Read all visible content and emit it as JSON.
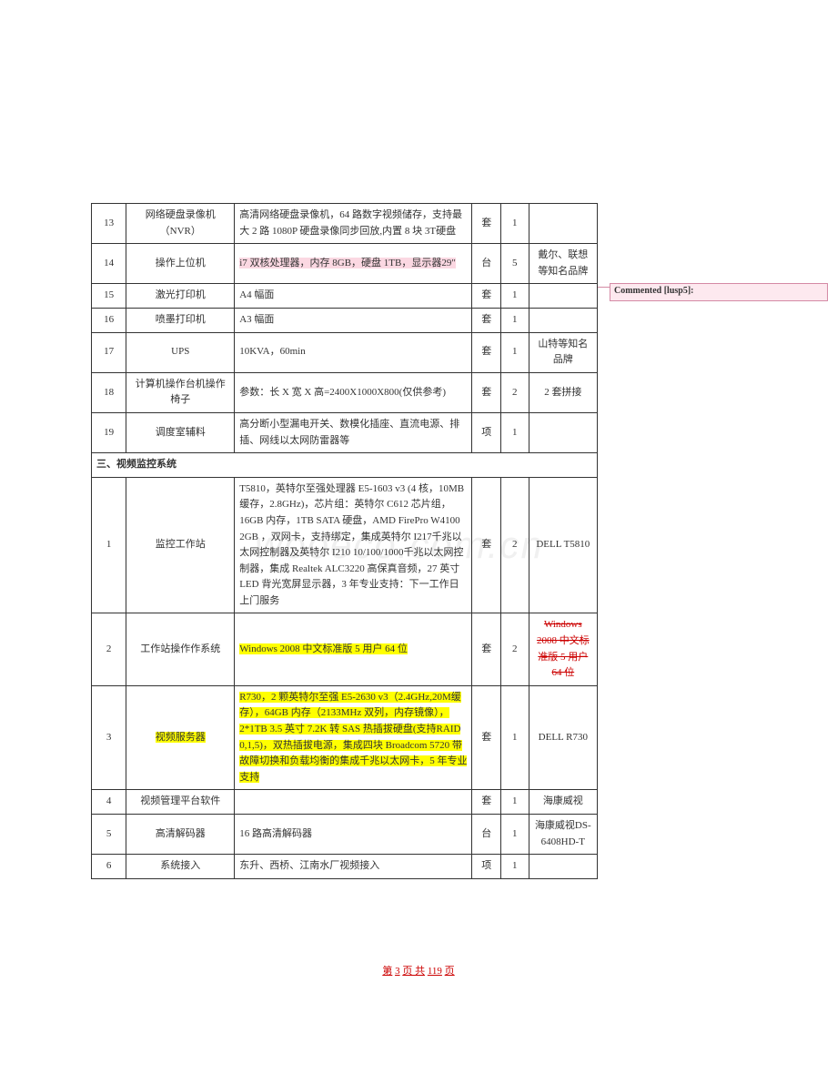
{
  "watermark": "wooeco.com.cn",
  "comment_label": "Commented [lusp5]:",
  "footer": {
    "prefix": "第",
    "cur": "3",
    "mid": "页 共",
    "total": "119",
    "suffix": "页"
  },
  "colors": {
    "pink": "#fbd8e2",
    "yellow": "#ffff00",
    "strike": "#c00",
    "comment_bg": "#fde9ef",
    "comment_border": "#d48aa5"
  },
  "rows1": [
    {
      "n": "13",
      "name": "网络硬盘录像机（NVR）",
      "spec": "高清网络硬盘录像机，64 路数字视频储存，支持最大 2 路 1080P 硬盘录像同步回放,内置 8 块 3T硬盘",
      "unit": "套",
      "qty": "1",
      "note": ""
    },
    {
      "n": "14",
      "name": "操作上位机",
      "spec": "i7 双核处理器，内存 8GB，硬盘 1TB，显示器29\"",
      "unit": "台",
      "qty": "5",
      "note": "戴尔、联想等知名品牌",
      "spec_hl": "pink"
    },
    {
      "n": "15",
      "name": "激光打印机",
      "spec": "A4 幅面",
      "unit": "套",
      "qty": "1",
      "note": ""
    },
    {
      "n": "16",
      "name": "喷墨打印机",
      "spec": "A3 幅面",
      "unit": "套",
      "qty": "1",
      "note": ""
    },
    {
      "n": "17",
      "name": "UPS",
      "spec": "10KVA，60min",
      "unit": "套",
      "qty": "1",
      "note": "山特等知名品牌"
    },
    {
      "n": "18",
      "name": "计算机操作台机操作椅子",
      "spec": "参数：长 X 宽 X 高=2400X1000X800(仅供参考)",
      "unit": "套",
      "qty": "2",
      "note": "2 套拼接"
    },
    {
      "n": "19",
      "name": "调度室辅料",
      "spec": "高分断小型漏电开关、数模化插座、直流电源、排插、网线以太网防雷器等",
      "unit": "项",
      "qty": "1",
      "note": ""
    }
  ],
  "section3": "三、视频监控系统",
  "rows2": [
    {
      "n": "1",
      "name": "监控工作站",
      "spec": "T5810，英特尔至强处理器 E5-1603 v3 (4 核，10MB 缓存，2.8GHz)，芯片组：英特尔 C612 芯片组，16GB 内存，1TB SATA 硬盘，AMD FirePro W4100 2GB ，双网卡，支持绑定，集成英特尔 I217千兆以太网控制器及英特尔 I210 10/100/1000千兆以太网控制器，集成 Realtek ALC3220 高保真音频，27 英寸 LED 背光宽屏显示器，3 年专业支持：下一工作日上门服务",
      "unit": "套",
      "qty": "2",
      "note": "DELL T5810"
    },
    {
      "n": "2",
      "name": "工作站操作作系统",
      "spec": "Windows 2008 中文标准版 5 用户 64 位",
      "unit": "套",
      "qty": "2",
      "note": "Windows 2008 中文标准版 5 用户64 位",
      "spec_hl": "yellow",
      "note_strike": true
    },
    {
      "n": "3",
      "name": "视频服务器",
      "spec": "R730，2 颗英特尔至强 E5-2630 v3（2.4GHz,20M缓存），64GB 内存（2133MHz 双列，内存镜像），2*1TB 3.5 英寸 7.2K 转 SAS 热插拔硬盘(支持RAID 0,1,5)，双热插拔电源，集成四块 Broadcom 5720 带故障切换和负载均衡的集成千兆以太网卡，5 年专业支持",
      "unit": "套",
      "qty": "1",
      "note": "DELL R730",
      "name_hl": "yellow",
      "spec_hl": "yellow"
    },
    {
      "n": "4",
      "name": "视频管理平台软件",
      "spec": "",
      "unit": "套",
      "qty": "1",
      "note": "海康威视"
    },
    {
      "n": "5",
      "name": "高清解码器",
      "spec": "16 路高清解码器",
      "unit": "台",
      "qty": "1",
      "note": "海康威视DS-6408HD-T"
    },
    {
      "n": "6",
      "name": "系统接入",
      "spec": "东升、西桥、江南水厂视频接入",
      "unit": "项",
      "qty": "1",
      "note": ""
    }
  ]
}
